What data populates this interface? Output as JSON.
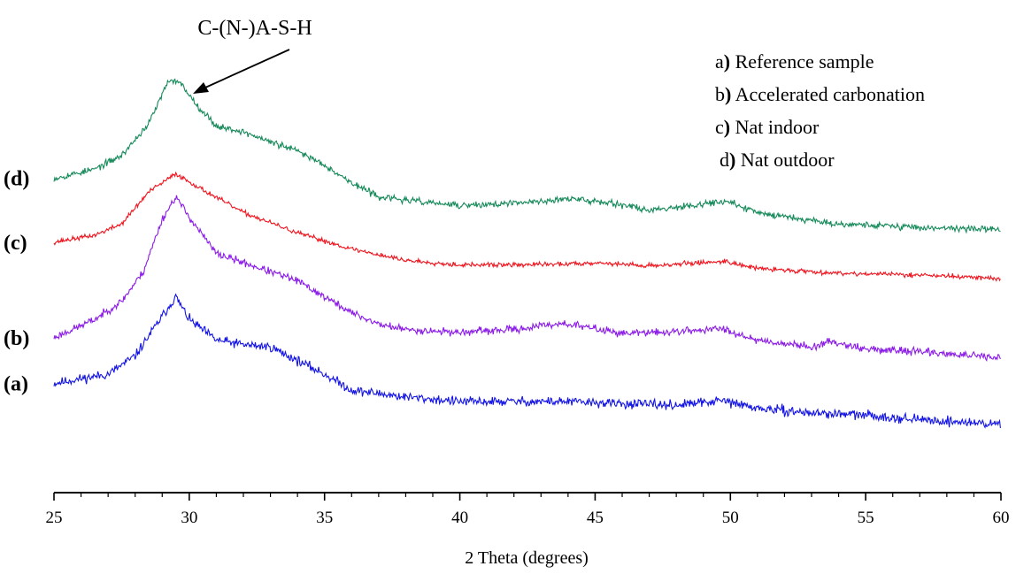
{
  "chart_data": {
    "type": "line",
    "xlabel": "2 Theta (degrees)",
    "ylabel": "",
    "xlim": [
      25,
      60
    ],
    "x_ticks": [
      25,
      30,
      35,
      40,
      45,
      50,
      55,
      60
    ],
    "y_axis_visible": false,
    "grid": false,
    "legend_position": "top-right",
    "legend": [
      {
        "key": "a)",
        "text": "Reference sample"
      },
      {
        "key": "b)",
        "text": "Accelerated carbonation"
      },
      {
        "key": "c)",
        "text": "Nat indoor"
      },
      {
        "key": "d)",
        "text": "Nat outdoor"
      }
    ],
    "annotation": {
      "text": "C-(N-)A-S-H",
      "x": 29.7
    },
    "series": [
      {
        "tag": "(a)",
        "color": "#1414e6",
        "noise": 0.05,
        "seed": 11,
        "points": [
          [
            25,
            2.4
          ],
          [
            27,
            2.6
          ],
          [
            28,
            3.0
          ],
          [
            28.8,
            3.7
          ],
          [
            29.5,
            4.3
          ],
          [
            30,
            3.8
          ],
          [
            31,
            3.35
          ],
          [
            32,
            3.25
          ],
          [
            33,
            3.2
          ],
          [
            34,
            2.9
          ],
          [
            35,
            2.6
          ],
          [
            36,
            2.25
          ],
          [
            38,
            2.1
          ],
          [
            40,
            2.0
          ],
          [
            42,
            2.0
          ],
          [
            44,
            2.0
          ],
          [
            46,
            1.95
          ],
          [
            48,
            1.92
          ],
          [
            49.7,
            2.02
          ],
          [
            51,
            1.85
          ],
          [
            53,
            1.75
          ],
          [
            55,
            1.7
          ],
          [
            57,
            1.6
          ],
          [
            60,
            1.5
          ]
        ]
      },
      {
        "tag": "(b)",
        "color": "#8b1be8",
        "noise": 0.04,
        "seed": 23,
        "points": [
          [
            25,
            3.4
          ],
          [
            26.5,
            3.8
          ],
          [
            27.5,
            4.2
          ],
          [
            28.3,
            4.85
          ],
          [
            29,
            6.0
          ],
          [
            29.5,
            6.5
          ],
          [
            30,
            6.05
          ],
          [
            31,
            5.25
          ],
          [
            32,
            5.05
          ],
          [
            33,
            4.85
          ],
          [
            34,
            4.65
          ],
          [
            35,
            4.3
          ],
          [
            36,
            3.95
          ],
          [
            37,
            3.7
          ],
          [
            38,
            3.58
          ],
          [
            40,
            3.52
          ],
          [
            42,
            3.58
          ],
          [
            43.8,
            3.72
          ],
          [
            45,
            3.6
          ],
          [
            46,
            3.5
          ],
          [
            47.5,
            3.52
          ],
          [
            49.7,
            3.6
          ],
          [
            51,
            3.35
          ],
          [
            53,
            3.2
          ],
          [
            53.8,
            3.32
          ],
          [
            55,
            3.15
          ],
          [
            57,
            3.1
          ],
          [
            60,
            2.95
          ]
        ]
      },
      {
        "tag": "(c)",
        "color": "#f0141e",
        "noise": 0.025,
        "seed": 37,
        "points": [
          [
            25,
            5.5
          ],
          [
            26.5,
            5.65
          ],
          [
            27.5,
            5.9
          ],
          [
            28.5,
            6.6
          ],
          [
            29.5,
            7.0
          ],
          [
            30.5,
            6.65
          ],
          [
            32,
            6.15
          ],
          [
            34,
            5.7
          ],
          [
            36,
            5.35
          ],
          [
            38,
            5.1
          ],
          [
            40,
            5.0
          ],
          [
            42,
            5.0
          ],
          [
            44,
            5.02
          ],
          [
            45,
            5.05
          ],
          [
            47,
            4.98
          ],
          [
            49.8,
            5.08
          ],
          [
            51,
            4.92
          ],
          [
            54,
            4.82
          ],
          [
            57,
            4.78
          ],
          [
            60,
            4.7
          ]
        ]
      },
      {
        "tag": "(d)",
        "color": "#168a5a",
        "noise": 0.035,
        "seed": 53,
        "points": [
          [
            25,
            6.9
          ],
          [
            26.5,
            7.1
          ],
          [
            27.5,
            7.4
          ],
          [
            28.5,
            8.1
          ],
          [
            29.2,
            9.0
          ],
          [
            29.6,
            9.05
          ],
          [
            30.3,
            8.5
          ],
          [
            31,
            8.05
          ],
          [
            32,
            7.92
          ],
          [
            33,
            7.7
          ],
          [
            34,
            7.5
          ],
          [
            35,
            7.2
          ],
          [
            36,
            6.8
          ],
          [
            37,
            6.5
          ],
          [
            38,
            6.42
          ],
          [
            40,
            6.3
          ],
          [
            42,
            6.35
          ],
          [
            44,
            6.45
          ],
          [
            45.5,
            6.38
          ],
          [
            47,
            6.2
          ],
          [
            49.8,
            6.4
          ],
          [
            51,
            6.15
          ],
          [
            54,
            5.9
          ],
          [
            55,
            5.88
          ],
          [
            57,
            5.82
          ],
          [
            60,
            5.78
          ]
        ]
      }
    ]
  }
}
